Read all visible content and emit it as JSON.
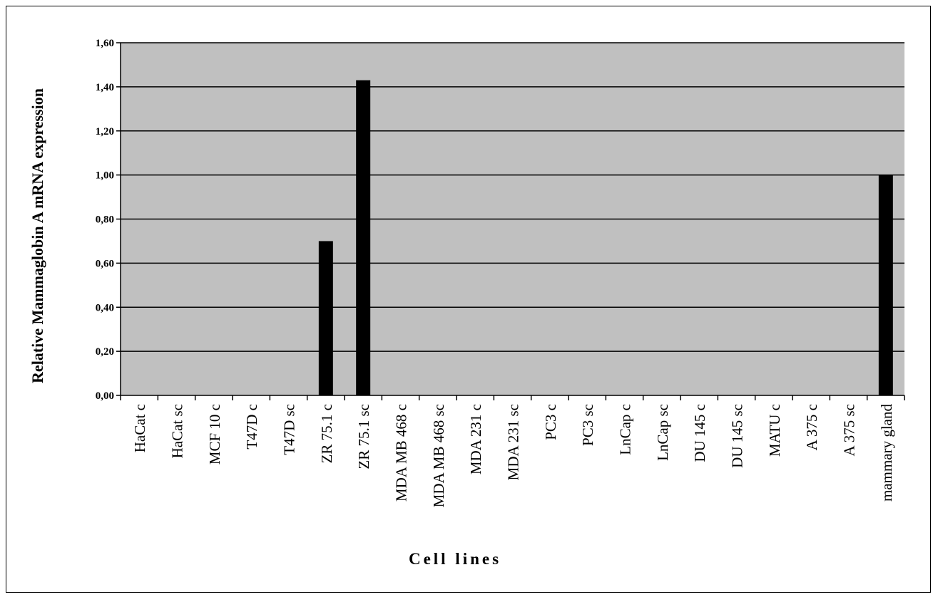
{
  "chart_data": {
    "type": "bar",
    "title": "",
    "xlabel": "Cell lines",
    "ylabel": "Relative Mammaglobin A mRNA expression",
    "ylim": [
      0,
      1.6
    ],
    "ytick_step": 0.2,
    "ytick_labels": [
      "0,00",
      "0,20",
      "0,40",
      "0,60",
      "0,80",
      "1,00",
      "1,20",
      "1,40",
      "1,60"
    ],
    "categories": [
      "HaCat c",
      "HaCat sc",
      "MCF 10 c",
      "T47D c",
      "T47D sc",
      "ZR 75.1 c",
      "ZR 75.1 sc",
      "MDA MB 468 c",
      "MDA MB 468 sc",
      "MDA 231 c",
      "MDA 231 sc",
      "PC3 c",
      "PC3 sc",
      "LnCap c",
      "LnCap sc",
      "DU 145 c",
      "DU 145 sc",
      "MATU c",
      "A 375 c",
      "A 375 sc",
      "mammary gland"
    ],
    "values": [
      0,
      0,
      0,
      0,
      0,
      0.7,
      1.43,
      0,
      0,
      0,
      0,
      0,
      0,
      0,
      0,
      0,
      0,
      0,
      0,
      0,
      1.0
    ],
    "grid": true,
    "legend": "none",
    "colors": {
      "plot_background": "#c0c0c0",
      "bar": "#000000",
      "gridline": "#000000"
    }
  }
}
